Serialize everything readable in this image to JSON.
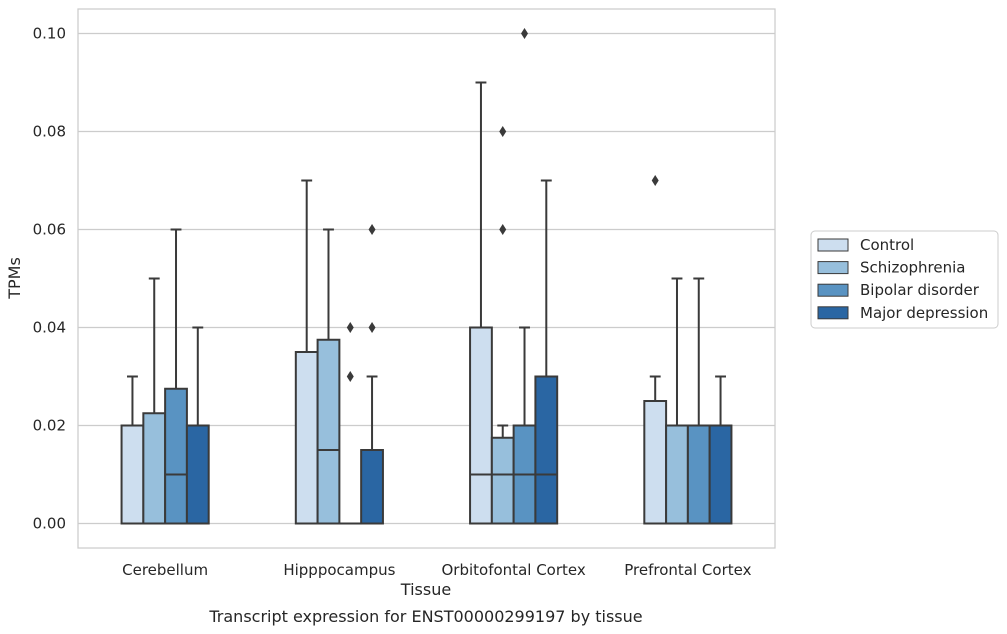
{
  "chart_data": {
    "type": "boxplot",
    "title": "Transcript expression for ENST00000299197 by tissue",
    "xlabel": "Tissue",
    "ylabel": "TPMs",
    "ylim": [
      -0.005,
      0.105
    ],
    "yticks": [
      "0.00",
      "0.02",
      "0.04",
      "0.06",
      "0.08",
      "0.10"
    ],
    "ytick_values": [
      0,
      0.02,
      0.04,
      0.06,
      0.08,
      0.1
    ],
    "grid": true,
    "legend_position": "right",
    "categories": [
      "Cerebellum",
      "Hipppocampus",
      "Orbitofontal Cortex",
      "Prefrontal Cortex"
    ],
    "series": [
      {
        "name": "Control",
        "color": "#cddeef",
        "boxes": [
          {
            "q1": 0,
            "median": 0,
            "q3": 0.02,
            "whisker_low": 0,
            "whisker_high": 0.03,
            "outliers": []
          },
          {
            "q1": 0,
            "median": 0,
            "q3": 0.035,
            "whisker_low": 0,
            "whisker_high": 0.07,
            "outliers": []
          },
          {
            "q1": 0,
            "median": 0.01,
            "q3": 0.04,
            "whisker_low": 0,
            "whisker_high": 0.09,
            "outliers": []
          },
          {
            "q1": 0,
            "median": 0,
            "q3": 0.025,
            "whisker_low": 0,
            "whisker_high": 0.03,
            "outliers": [
              0.07
            ]
          }
        ]
      },
      {
        "name": "Schizophrenia",
        "color": "#97bfdc",
        "boxes": [
          {
            "q1": 0,
            "median": 0,
            "q3": 0.0225,
            "whisker_low": 0,
            "whisker_high": 0.05,
            "outliers": []
          },
          {
            "q1": 0,
            "median": 0.015,
            "q3": 0.0375,
            "whisker_low": 0,
            "whisker_high": 0.06,
            "outliers": []
          },
          {
            "q1": 0,
            "median": 0.01,
            "q3": 0.0175,
            "whisker_low": 0,
            "whisker_high": 0.02,
            "outliers": [
              0.06,
              0.08
            ]
          },
          {
            "q1": 0,
            "median": 0,
            "q3": 0.02,
            "whisker_low": 0,
            "whisker_high": 0.05,
            "outliers": []
          }
        ]
      },
      {
        "name": "Bipolar disorder",
        "color": "#5993c2",
        "boxes": [
          {
            "q1": 0,
            "median": 0.01,
            "q3": 0.0275,
            "whisker_low": 0,
            "whisker_high": 0.06,
            "outliers": []
          },
          {
            "q1": 0,
            "median": 0,
            "q3": 0,
            "whisker_low": 0,
            "whisker_high": 0,
            "outliers": [
              0.03,
              0.04
            ]
          },
          {
            "q1": 0,
            "median": 0.01,
            "q3": 0.02,
            "whisker_low": 0,
            "whisker_high": 0.04,
            "outliers": [
              0.1
            ]
          },
          {
            "q1": 0,
            "median": 0,
            "q3": 0.02,
            "whisker_low": 0,
            "whisker_high": 0.05,
            "outliers": []
          }
        ]
      },
      {
        "name": "Major depression",
        "color": "#2a66a3",
        "boxes": [
          {
            "q1": 0,
            "median": 0,
            "q3": 0.02,
            "whisker_low": 0,
            "whisker_high": 0.04,
            "outliers": []
          },
          {
            "q1": 0,
            "median": 0,
            "q3": 0.015,
            "whisker_low": 0,
            "whisker_high": 0.03,
            "outliers": [
              0.04,
              0.06
            ]
          },
          {
            "q1": 0,
            "median": 0.01,
            "q3": 0.03,
            "whisker_low": 0,
            "whisker_high": 0.07,
            "outliers": []
          },
          {
            "q1": 0,
            "median": 0,
            "q3": 0.02,
            "whisker_low": 0,
            "whisker_high": 0.03,
            "outliers": []
          }
        ]
      }
    ]
  }
}
